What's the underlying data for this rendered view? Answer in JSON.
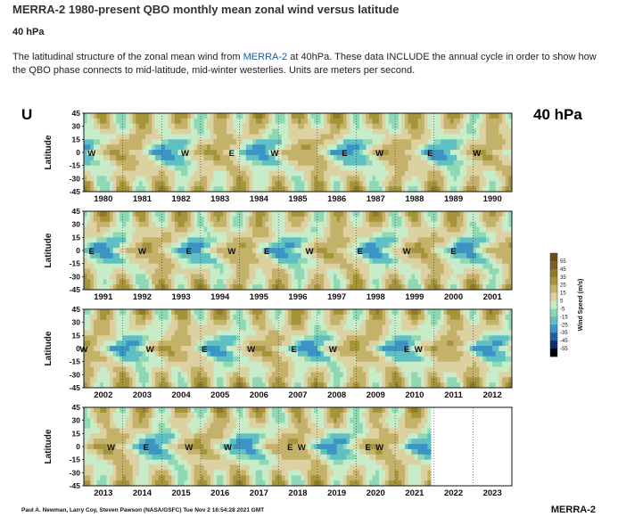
{
  "header": {
    "title": "MERRA-2 1980-present QBO monthly mean zonal wind versus latitude",
    "subtitle": "40 hPa",
    "description_pre": "The latitudinal structure of the zonal mean wind from ",
    "description_link": "MERRA-2",
    "description_post": " at 40hPa. These data INCLUDE the annual cycle in order to show how the QBO phase connects to mid-latitude, mid-winter westerlies. Units are meters per second."
  },
  "chart_data": {
    "type": "heatmap",
    "variable_label": "U",
    "level_label": "40 hPa",
    "ylabel": "Latitude",
    "yticks": [
      "45",
      "30",
      "15",
      "0",
      "-15",
      "-30",
      "-45"
    ],
    "ylim": [
      -45,
      45
    ],
    "panels": [
      {
        "years": [
          "1980",
          "1981",
          "1982",
          "1983",
          "1984",
          "1985",
          "1986",
          "1987",
          "1988",
          "1989",
          "1990"
        ],
        "phase_labels": [
          {
            "text": "W",
            "year": 1980.2
          },
          {
            "text": "W",
            "year": 1982.6
          },
          {
            "text": "E",
            "year": 1983.8
          },
          {
            "text": "W",
            "year": 1984.9
          },
          {
            "text": "E",
            "year": 1986.7
          },
          {
            "text": "W",
            "year": 1987.6
          },
          {
            "text": "E",
            "year": 1988.9
          },
          {
            "text": "W",
            "year": 1990.1
          }
        ]
      },
      {
        "years": [
          "1991",
          "1992",
          "1993",
          "1994",
          "1995",
          "1996",
          "1997",
          "1998",
          "1999",
          "2000",
          "2001"
        ],
        "phase_labels": [
          {
            "text": "E",
            "year": 1991.2
          },
          {
            "text": "W",
            "year": 1992.5
          },
          {
            "text": "E",
            "year": 1993.7
          },
          {
            "text": "W",
            "year": 1994.8
          },
          {
            "text": "E",
            "year": 1995.7
          },
          {
            "text": "W",
            "year": 1996.8
          },
          {
            "text": "E",
            "year": 1998.1
          },
          {
            "text": "W",
            "year": 1999.3
          },
          {
            "text": "E",
            "year": 2000.5
          }
        ]
      },
      {
        "years": [
          "2002",
          "2003",
          "2004",
          "2005",
          "2006",
          "2007",
          "2008",
          "2009",
          "2010",
          "2011",
          "2012"
        ],
        "phase_labels": [
          {
            "text": "W",
            "year": 2002.0
          },
          {
            "text": "W",
            "year": 2003.7
          },
          {
            "text": "E",
            "year": 2005.1
          },
          {
            "text": "W",
            "year": 2006.3
          },
          {
            "text": "E",
            "year": 2007.4
          },
          {
            "text": "W",
            "year": 2008.4
          },
          {
            "text": "E",
            "year": 2010.3
          },
          {
            "text": "W",
            "year": 2010.6
          }
        ]
      },
      {
        "years": [
          "2013",
          "2014",
          "2015",
          "2016",
          "2017",
          "2018",
          "2019",
          "2020",
          "2021",
          "2022",
          "2023"
        ],
        "data_through": 2021.95,
        "phase_labels": [
          {
            "text": "W",
            "year": 2013.7
          },
          {
            "text": "E",
            "year": 2014.6
          },
          {
            "text": "W",
            "year": 2015.7
          },
          {
            "text": "W",
            "year": 2016.7
          },
          {
            "text": "E",
            "year": 2018.3
          },
          {
            "text": "W",
            "year": 2018.6
          },
          {
            "text": "E",
            "year": 2020.3
          },
          {
            "text": "W",
            "year": 2020.6
          }
        ]
      }
    ],
    "colorbar": {
      "title": "Wind Speed (m/s)",
      "ticks": [
        "55",
        "45",
        "35",
        "25",
        "15",
        "5",
        "-5",
        "-15",
        "-25",
        "-35",
        "-45",
        "-55"
      ],
      "colors": [
        "#6b4a16",
        "#7d6120",
        "#907a2c",
        "#a6943a",
        "#c5b26a",
        "#dcd1a0",
        "#c8ecc8",
        "#8fd8b4",
        "#5fc0c4",
        "#3c94c4",
        "#1e5ea6",
        "#0b2d6a",
        "#000000"
      ]
    },
    "credit": "Paul A. Newman, Larry Coy, Steven Pawson (NASA/GSFC) Tue Nov  2 16:54:28 2021 GMT",
    "brand": "MERRA-2"
  }
}
